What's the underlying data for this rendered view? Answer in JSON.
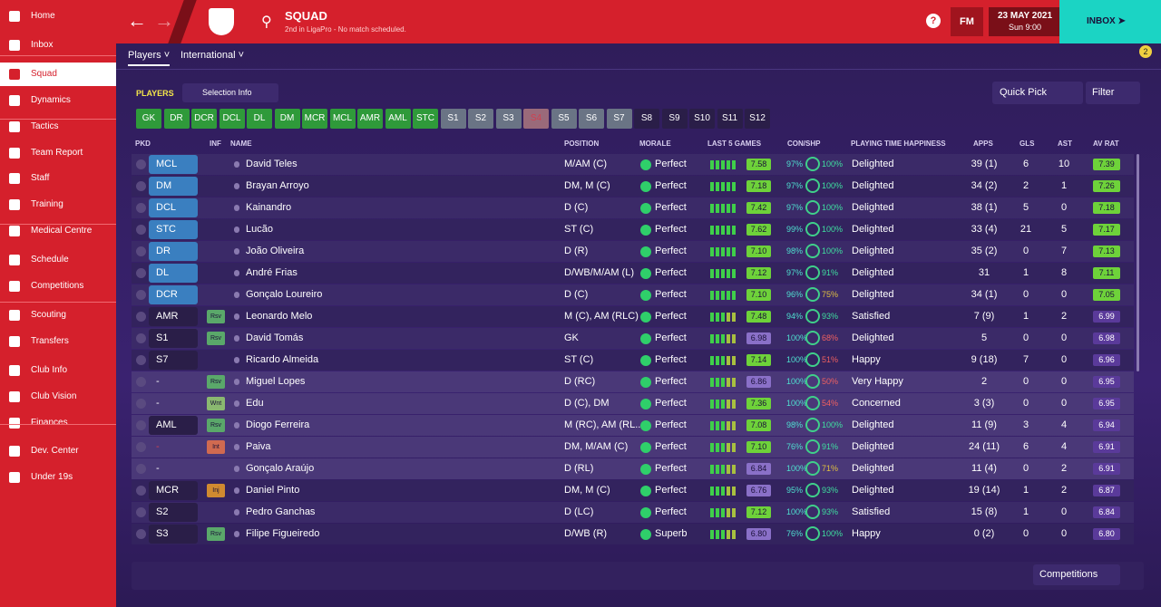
{
  "sidebar": {
    "items": [
      "Home",
      "Inbox",
      "Squad",
      "Dynamics",
      "Tactics",
      "Team Report",
      "Staff",
      "Training",
      "Medical Centre",
      "Schedule",
      "Competitions",
      "Scouting",
      "Transfers",
      "Club Info",
      "Club Vision",
      "Finances",
      "Dev. Center",
      "Under 19s"
    ]
  },
  "header": {
    "title": "SQUAD",
    "subtitle": "2nd in LigaPro - No match scheduled.",
    "fm": "FM",
    "date": "23 MAY 2021",
    "time": "Sun 9:00",
    "inbox": "INBOX",
    "badge": "2"
  },
  "tabs": [
    "Players",
    "International"
  ],
  "toolbar": {
    "players": "PLAYERS",
    "selection": "Selection Info",
    "quick_pick": "Quick Pick",
    "filter": "Filter"
  },
  "position_buttons": [
    "GK",
    "DR",
    "DCR",
    "DCL",
    "DL",
    "DM",
    "MCR",
    "MCL",
    "AMR",
    "AML",
    "STC",
    "S1",
    "S2",
    "S3",
    "S4",
    "S5",
    "S6",
    "S7",
    "S8",
    "S9",
    "S10",
    "S11",
    "S12"
  ],
  "columns": [
    "PKD",
    "INF",
    "NAME",
    "POSITION",
    "MORALE",
    "LAST 5 GAMES",
    "CON/SHP",
    "PLAYING TIME HAPPINESS",
    "APPS",
    "GLS",
    "AST",
    "AV RAT"
  ],
  "rows": [
    {
      "pkd": "MCL",
      "inf": "",
      "name": "David Teles",
      "position": "M/AM (C)",
      "morale": "Perfect",
      "last5": "7.58",
      "con": "97%",
      "shp": "100%",
      "happiness": "Delighted",
      "apps": "39 (1)",
      "gls": "6",
      "ast": "10",
      "avrat": "7.39"
    },
    {
      "pkd": "DM",
      "inf": "",
      "name": "Brayan Arroyo",
      "position": "DM, M (C)",
      "morale": "Perfect",
      "last5": "7.18",
      "con": "97%",
      "shp": "100%",
      "happiness": "Delighted",
      "apps": "34 (2)",
      "gls": "2",
      "ast": "1",
      "avrat": "7.26"
    },
    {
      "pkd": "DCL",
      "inf": "",
      "name": "Kainandro",
      "position": "D (C)",
      "morale": "Perfect",
      "last5": "7.42",
      "con": "97%",
      "shp": "100%",
      "happiness": "Delighted",
      "apps": "38 (1)",
      "gls": "5",
      "ast": "0",
      "avrat": "7.18"
    },
    {
      "pkd": "STC",
      "inf": "",
      "name": "Lucão",
      "position": "ST (C)",
      "morale": "Perfect",
      "last5": "7.62",
      "con": "99%",
      "shp": "100%",
      "happiness": "Delighted",
      "apps": "33 (4)",
      "gls": "21",
      "ast": "5",
      "avrat": "7.17"
    },
    {
      "pkd": "DR",
      "inf": "",
      "name": "João Oliveira",
      "position": "D (R)",
      "morale": "Perfect",
      "last5": "7.10",
      "con": "98%",
      "shp": "100%",
      "happiness": "Delighted",
      "apps": "35 (2)",
      "gls": "0",
      "ast": "7",
      "avrat": "7.13"
    },
    {
      "pkd": "DL",
      "inf": "",
      "name": "André Frias",
      "position": "D/WB/M/AM (L)",
      "morale": "Perfect",
      "last5": "7.12",
      "con": "97%",
      "shp": "91%",
      "happiness": "Delighted",
      "apps": "31",
      "gls": "1",
      "ast": "8",
      "avrat": "7.11"
    },
    {
      "pkd": "DCR",
      "inf": "",
      "name": "Gonçalo Loureiro",
      "position": "D (C)",
      "morale": "Perfect",
      "last5": "7.10",
      "con": "96%",
      "shp": "75%",
      "happiness": "Delighted",
      "apps": "34 (1)",
      "gls": "0",
      "ast": "0",
      "avrat": "7.05"
    },
    {
      "pkd": "AMR",
      "inf": "Rsv",
      "name": "Leonardo Melo",
      "position": "M (C), AM (RLC)",
      "morale": "Perfect",
      "last5": "7.48",
      "con": "94%",
      "shp": "93%",
      "happiness": "Satisfied",
      "apps": "7 (9)",
      "gls": "1",
      "ast": "2",
      "avrat": "6.99"
    },
    {
      "pkd": "S1",
      "inf": "Rsv",
      "name": "David Tomás",
      "position": "GK",
      "morale": "Perfect",
      "last5": "6.98",
      "con": "100%",
      "shp": "68%",
      "happiness": "Delighted",
      "apps": "5",
      "gls": "0",
      "ast": "0",
      "avrat": "6.98"
    },
    {
      "pkd": "S7",
      "inf": "",
      "name": "Ricardo Almeida",
      "position": "ST (C)",
      "morale": "Perfect",
      "last5": "7.14",
      "con": "100%",
      "shp": "51%",
      "happiness": "Happy",
      "apps": "9 (18)",
      "gls": "7",
      "ast": "0",
      "avrat": "6.96"
    },
    {
      "pkd": "-",
      "inf": "Rsv",
      "name": "Miguel Lopes",
      "position": "D (RC)",
      "morale": "Perfect",
      "last5": "6.86",
      "con": "100%",
      "shp": "50%",
      "happiness": "Very Happy",
      "apps": "2",
      "gls": "0",
      "ast": "0",
      "avrat": "6.95"
    },
    {
      "pkd": "-",
      "inf": "Wnt",
      "name": "Edu",
      "position": "D (C), DM",
      "morale": "Perfect",
      "last5": "7.36",
      "con": "100%",
      "shp": "54%",
      "happiness": "Concerned",
      "apps": "3 (3)",
      "gls": "0",
      "ast": "0",
      "avrat": "6.95"
    },
    {
      "pkd": "AML",
      "inf": "Rsv",
      "name": "Diogo Ferreira",
      "position": "M (RC), AM (RL...",
      "morale": "Perfect",
      "last5": "7.08",
      "con": "98%",
      "shp": "100%",
      "happiness": "Delighted",
      "apps": "11 (9)",
      "gls": "3",
      "ast": "4",
      "avrat": "6.94"
    },
    {
      "pkd": "-",
      "inf": "Int",
      "name": "Paiva",
      "position": "DM, M/AM (C)",
      "morale": "Perfect",
      "last5": "7.10",
      "con": "76%",
      "shp": "91%",
      "happiness": "Delighted",
      "apps": "24 (11)",
      "gls": "6",
      "ast": "4",
      "avrat": "6.91"
    },
    {
      "pkd": "-",
      "inf": "",
      "name": "Gonçalo Araújo",
      "position": "D (RL)",
      "morale": "Perfect",
      "last5": "6.84",
      "con": "100%",
      "shp": "71%",
      "happiness": "Delighted",
      "apps": "11 (4)",
      "gls": "0",
      "ast": "2",
      "avrat": "6.91"
    },
    {
      "pkd": "MCR",
      "inf": "Inj",
      "name": "Daniel Pinto",
      "position": "DM, M (C)",
      "morale": "Perfect",
      "last5": "6.76",
      "con": "95%",
      "shp": "93%",
      "happiness": "Delighted",
      "apps": "19 (14)",
      "gls": "1",
      "ast": "2",
      "avrat": "6.87"
    },
    {
      "pkd": "S2",
      "inf": "",
      "name": "Pedro Ganchas",
      "position": "D (LC)",
      "morale": "Perfect",
      "last5": "7.12",
      "con": "100%",
      "shp": "93%",
      "happiness": "Satisfied",
      "apps": "15 (8)",
      "gls": "1",
      "ast": "0",
      "avrat": "6.84"
    },
    {
      "pkd": "S3",
      "inf": "Rsv",
      "name": "Filipe Figueiredo",
      "position": "D/WB (R)",
      "morale": "Superb",
      "last5": "6.80",
      "con": "76%",
      "shp": "100%",
      "happiness": "Happy",
      "apps": "0 (2)",
      "gls": "0",
      "ast": "0",
      "avrat": "6.80"
    }
  ],
  "footer": {
    "competitions": "Competitions"
  }
}
